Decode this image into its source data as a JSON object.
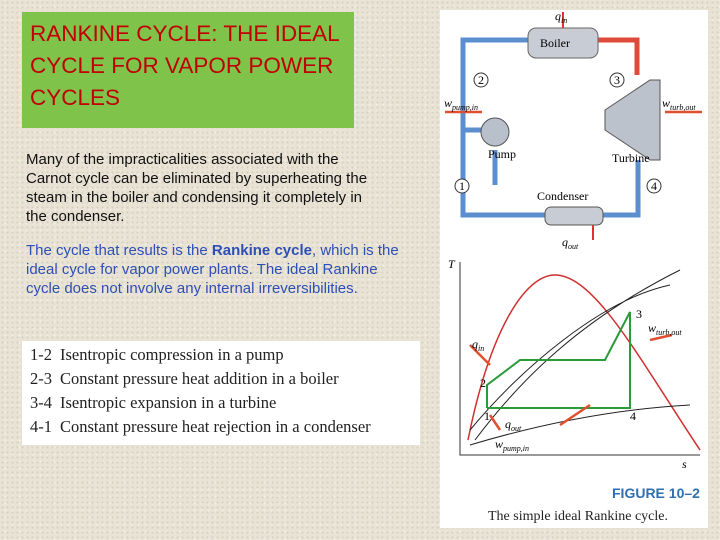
{
  "header": {
    "title": "RANKINE CYCLE: THE IDEAL CYCLE FOR VAPOR POWER CYCLES"
  },
  "paragraphs": [
    {
      "text": "Many of the impracticalities associated with the Carnot cycle can be eliminated by superheating the steam in the boiler and condensing it completely in the condenser."
    },
    {
      "parts": [
        "The cycle that results is the ",
        "Rankine cycle",
        ", which is the ideal cycle for vapor power plants. The ideal Rankine cycle does not involve any internal irreversibilities."
      ]
    }
  ],
  "table": {
    "rows": [
      [
        "1-2",
        "Isentropic compression in a pump"
      ],
      [
        "2-3",
        "Constant pressure heat addition in a boiler"
      ],
      [
        "3-4",
        "Isentropic expansion in a turbine"
      ],
      [
        "4-1",
        "Constant pressure heat rejection in a condenser"
      ]
    ]
  },
  "schematic": {
    "q_in": {
      "symbol": "q",
      "sub": "in"
    },
    "boiler": "Boiler",
    "state_2": "2",
    "state_3": "3",
    "state_1": "1",
    "state_4": "4",
    "w_pump": {
      "symbol": "w",
      "sub": "pump,in"
    },
    "w_turb": {
      "symbol": "w",
      "sub": "turb,out"
    },
    "pump": "Pump",
    "turbine": "Turbine",
    "condenser": "Condenser",
    "q_out": {
      "symbol": "q",
      "sub": "out"
    }
  },
  "ts_diagram": {
    "y_axis": "T",
    "x_axis": "s",
    "state_3": "3",
    "state_2": "2",
    "state_1": "1",
    "state_4": "4",
    "w_turb": {
      "symbol": "w",
      "sub": "turb,out"
    },
    "q_in": {
      "symbol": "q",
      "sub": "in"
    },
    "q_out": {
      "symbol": "q",
      "sub": "out"
    },
    "w_pump": {
      "symbol": "w",
      "sub": "pump,in"
    }
  },
  "figure": {
    "number": "FIGURE 10–2",
    "caption": "The simple ideal Rankine cycle."
  }
}
